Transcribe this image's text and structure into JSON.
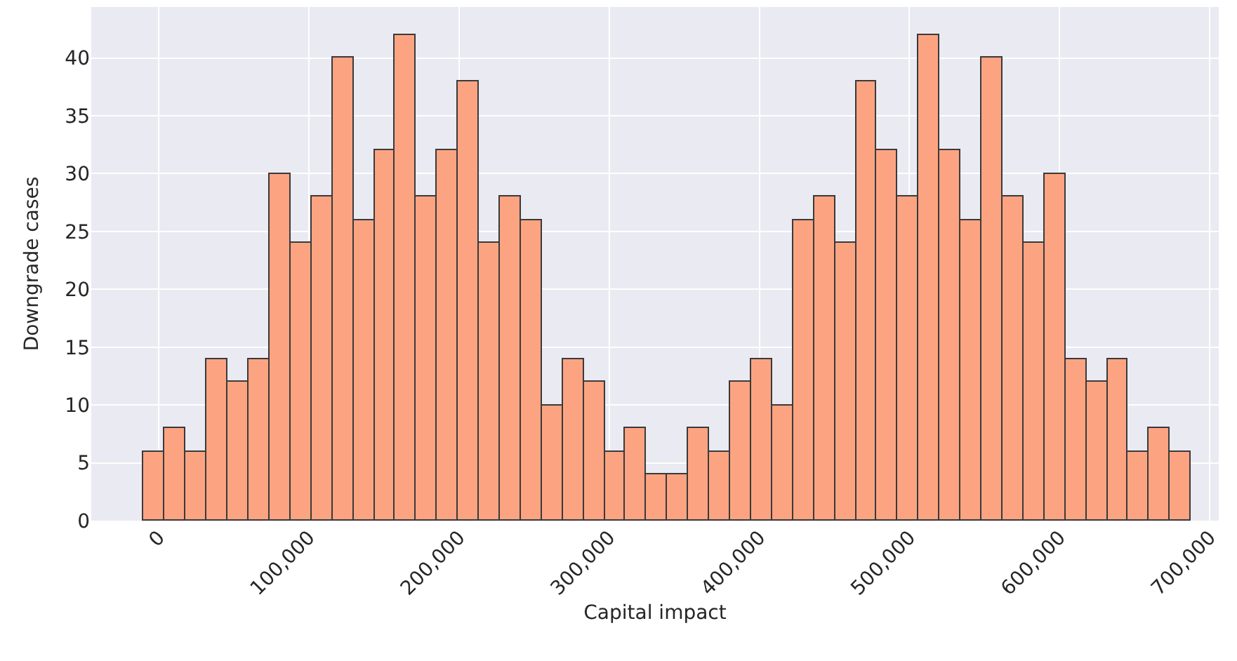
{
  "chart_data": {
    "type": "histogram",
    "xlabel": "Capital impact",
    "ylabel": "Downgrade cases",
    "bins": [
      -10000,
      3950,
      17900,
      31850,
      45800,
      59750,
      73700,
      87650,
      101600,
      115550,
      129500,
      143450,
      157400,
      171350,
      185300,
      199250,
      213200,
      227150,
      241100,
      255050,
      269000,
      282950,
      296900,
      310850,
      324800,
      338750,
      352700,
      366650,
      380600,
      394550,
      408500,
      422450,
      436400,
      450350,
      464300,
      478250,
      492200,
      506150,
      520100,
      534050,
      548000,
      561950,
      575900,
      589850,
      603800,
      617750,
      631700,
      645650,
      659600,
      673550,
      687500
    ],
    "values": [
      6,
      8,
      6,
      14,
      12,
      14,
      30,
      24,
      28,
      40,
      26,
      32,
      42,
      28,
      32,
      38,
      24,
      28,
      26,
      10,
      14,
      12,
      6,
      8,
      4,
      4,
      8,
      6,
      12,
      14,
      10,
      26,
      28,
      24,
      38,
      32,
      28,
      42,
      32,
      26,
      40,
      28,
      24,
      30,
      14,
      12,
      14,
      6,
      8,
      6
    ],
    "color": "#fca482",
    "xlim": [
      -45000,
      706000
    ],
    "xticks": [
      {
        "value": 0,
        "label": "0"
      },
      {
        "value": 100000,
        "label": "100,000"
      },
      {
        "value": 200000,
        "label": "200,000"
      },
      {
        "value": 300000,
        "label": "300,000"
      },
      {
        "value": 400000,
        "label": "400,000"
      },
      {
        "value": 500000,
        "label": "500,000"
      },
      {
        "value": 600000,
        "label": "600,000"
      },
      {
        "value": 700000,
        "label": "700,000"
      }
    ],
    "ylim": [
      0,
      44.4
    ],
    "yticks": [
      0,
      5,
      10,
      15,
      20,
      25,
      30,
      35,
      40
    ],
    "grid": true
  }
}
